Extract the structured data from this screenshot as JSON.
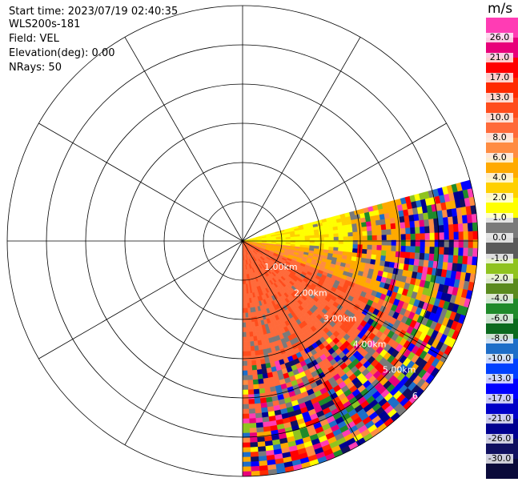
{
  "info": {
    "start_time": "Start time: 2023/07/19 02:40:35",
    "instrument": "WLS200s-181",
    "field": "Field: VEL",
    "elevation": "Elevation(deg): 0.00",
    "nrays": "NRays: 50"
  },
  "colorbar": {
    "unit": "m/s",
    "ticks": [
      "26.0",
      "21.0",
      "17.0",
      "13.0",
      "10.0",
      "8.0",
      "6.0",
      "4.0",
      "2.0",
      "1.0",
      "0.0",
      "-1.0",
      "-2.0",
      "-4.0",
      "-6.0",
      "-8.0",
      "-10.0",
      "-13.0",
      "-17.0",
      "-21.0",
      "-26.0",
      "-30.0"
    ],
    "colors": [
      "#ff3cb4",
      "#e8007a",
      "#ff0000",
      "#ff2a00",
      "#ff4c1c",
      "#ff6a3a",
      "#ff8c42",
      "#ffaa00",
      "#ffd000",
      "#ffff00",
      "#7a7a7a",
      "#5a5a5a",
      "#8fc31f",
      "#5a8a1e",
      "#1f8a2a",
      "#0b6a1e",
      "#1e6ec8",
      "#0040ff",
      "#0000ff",
      "#0000c8",
      "#000090",
      "#101060",
      "#0a0a3a"
    ]
  },
  "chart_data": {
    "type": "heatmap",
    "projection": "polar (PPI)",
    "field": "VEL",
    "units": "m/s",
    "range_rings_km": [
      1,
      2,
      3,
      4,
      5,
      6
    ],
    "range_labels": [
      "1.00km",
      "2.00km",
      "3.00km",
      "4.00km",
      "5.00km",
      "6"
    ],
    "spoke_angles_deg": [
      0,
      30,
      60,
      90,
      120,
      150,
      180,
      210,
      240,
      270,
      300,
      330
    ],
    "azimuth_coverage_deg": [
      75,
      180
    ],
    "nrays": 50,
    "colorbar_ticks": [
      26.0,
      21.0,
      17.0,
      13.0,
      10.0,
      8.0,
      6.0,
      4.0,
      2.0,
      1.0,
      0.0,
      -1.0,
      -2.0,
      -4.0,
      -6.0,
      -8.0,
      -10.0,
      -13.0,
      -17.0,
      -21.0,
      -26.0,
      -30.0
    ],
    "colorbar_range": [
      -30.0,
      30.0
    ]
  }
}
